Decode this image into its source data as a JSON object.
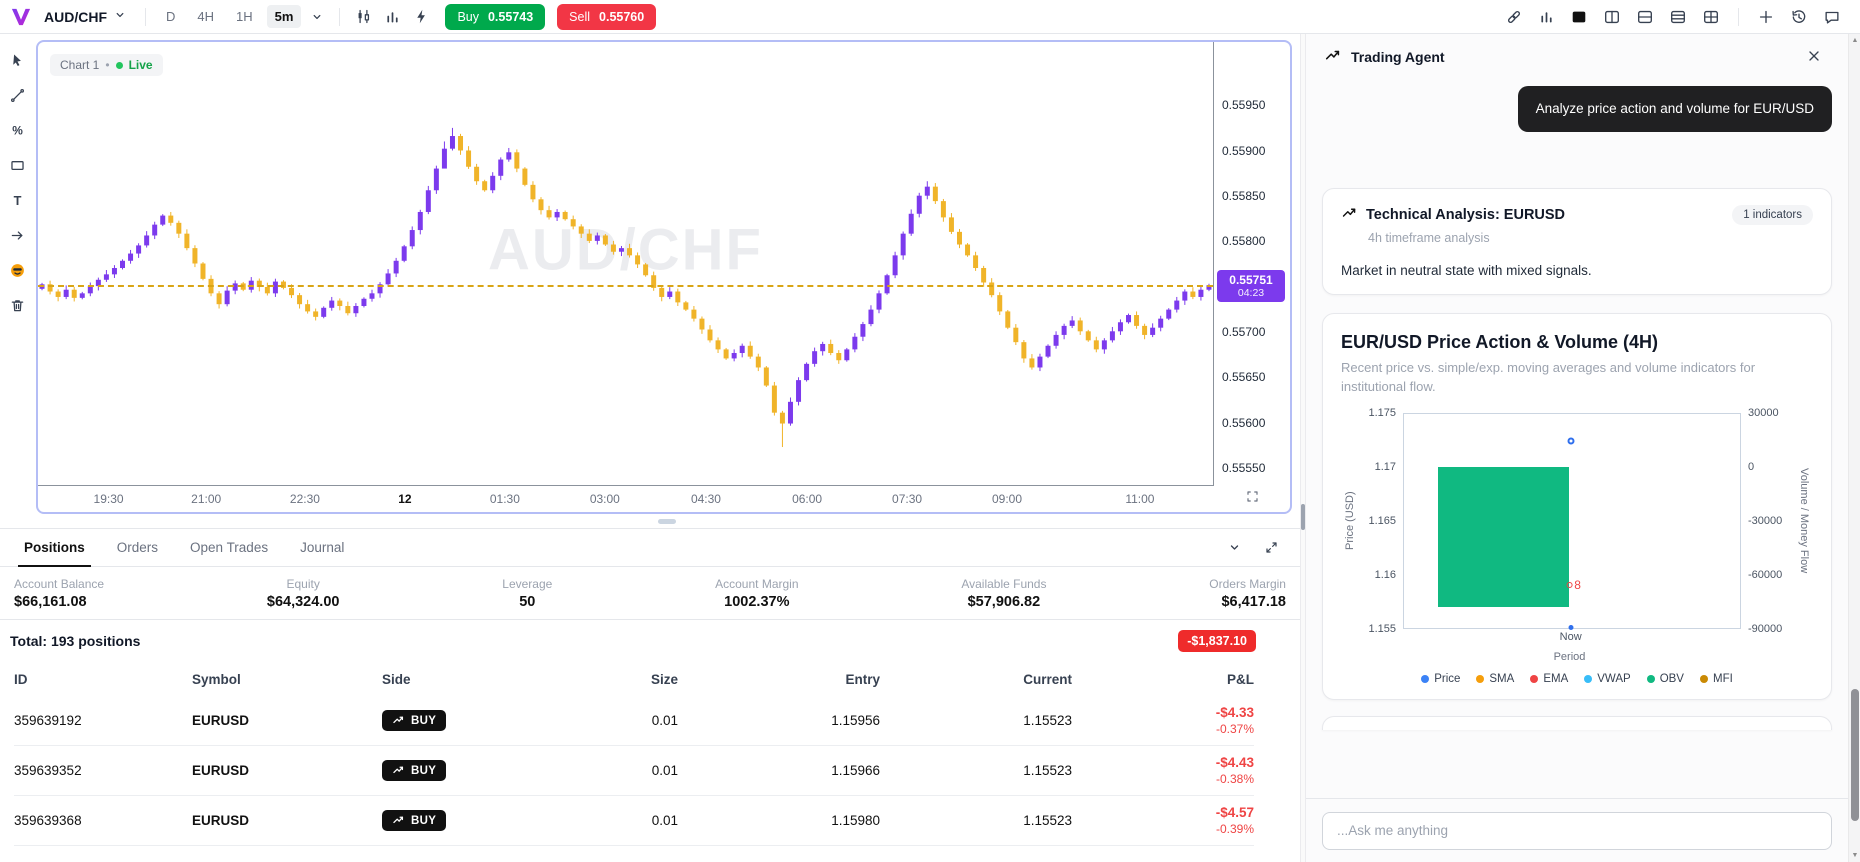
{
  "topbar": {
    "symbol": "AUD/CHF",
    "timeframes": [
      {
        "label": "D"
      },
      {
        "label": "4H"
      },
      {
        "label": "1H"
      },
      {
        "label": "5m",
        "active": true
      }
    ],
    "buy_label": "Buy",
    "buy_price": "0.55743",
    "sell_label": "Sell",
    "sell_price": "0.55760",
    "right_icons": [
      {
        "name": "link"
      },
      {
        "name": "stats"
      },
      {
        "name": "layout-single",
        "active": true
      },
      {
        "name": "layout-columns"
      },
      {
        "name": "layout-rows"
      },
      {
        "name": "layout-list"
      },
      {
        "name": "layout-grid"
      },
      {
        "sep": true
      },
      {
        "name": "plus"
      },
      {
        "name": "history"
      },
      {
        "name": "chat"
      }
    ]
  },
  "tools": [
    "cursor",
    "trendline",
    "percent",
    "rectangle",
    "text",
    "arrow",
    "emoji",
    "trash"
  ],
  "chart": {
    "badge_name": "Chart 1",
    "live_label": "Live",
    "watermark": "AUD/CHF",
    "current_price": 0.55751,
    "countdown": "04:23",
    "price_min": 0.5553,
    "price_max": 0.5602,
    "up_color": "#7c3aed",
    "down_color": "#f0b429",
    "grid_prices": [
      0.5595,
      0.559,
      0.5585,
      0.558,
      0.5575,
      0.557,
      0.5565,
      0.556,
      0.5555
    ],
    "time_labels": [
      {
        "label": "19:30",
        "pct": 6.0
      },
      {
        "label": "21:00",
        "pct": 14.3
      },
      {
        "label": "22:30",
        "pct": 22.7
      },
      {
        "label": "12",
        "pct": 31.2,
        "strong": true
      },
      {
        "label": "01:30",
        "pct": 39.7
      },
      {
        "label": "03:00",
        "pct": 48.2
      },
      {
        "label": "04:30",
        "pct": 56.8
      },
      {
        "label": "06:00",
        "pct": 65.4
      },
      {
        "label": "07:30",
        "pct": 73.9
      },
      {
        "label": "09:00",
        "pct": 82.4
      },
      {
        "label": "11:00",
        "pct": 93.7
      }
    ],
    "candles": [
      55752,
      55744,
      55738,
      55746,
      55737,
      55742,
      55750,
      55757,
      55763,
      55770,
      55778,
      55786,
      55795,
      55806,
      55818,
      55828,
      55820,
      55808,
      55792,
      55775,
      55758,
      55742,
      55730,
      55745,
      55753,
      55746,
      55756,
      55749,
      55742,
      55755,
      55748,
      55740,
      55730,
      55722,
      55716,
      55726,
      55734,
      55728,
      55720,
      55728,
      55736,
      55742,
      55752,
      55764,
      55778,
      55794,
      55812,
      55832,
      55856,
      55880,
      [
        55902,
        55888,
        55910
      ],
      [
        55916,
        55900,
        55925
      ],
      55900,
      55882,
      55866,
      55856,
      55872,
      55890,
      55898,
      55880,
      55862,
      55846,
      55834,
      55826,
      55832,
      55824,
      55816,
      55808,
      55800,
      55806,
      55796,
      55788,
      55792,
      55784,
      55774,
      55762,
      55748,
      55738,
      55744,
      55732,
      55724,
      55714,
      55702,
      55690,
      55680,
      55670,
      55676,
      55684,
      55672,
      55660,
      55640,
      55610,
      [
        55598,
        55572,
        55612
      ],
      55622,
      55646,
      55664,
      55678,
      55686,
      55676,
      55668,
      55680,
      55694,
      55708,
      55724,
      55742,
      55762,
      55784,
      55808,
      55830,
      55850,
      [
        55860,
        55846,
        55866
      ],
      55844,
      55826,
      55810,
      55796,
      55784,
      55770,
      55754,
      55740,
      55722,
      55704,
      55688,
      55670,
      55660,
      55672,
      55684,
      55696,
      55706,
      55712,
      55700,
      55690,
      55680,
      55690,
      55700,
      55710,
      55718,
      55706,
      55696,
      55704,
      55714,
      55724,
      55734,
      55744,
      55738,
      55746,
      55751
    ]
  },
  "positions_panel": {
    "tabs": [
      {
        "label": "Positions",
        "active": true
      },
      {
        "label": "Orders"
      },
      {
        "label": "Open Trades"
      },
      {
        "label": "Journal"
      }
    ],
    "stats": [
      {
        "label": "Account Balance",
        "value": "$66,161.08"
      },
      {
        "label": "Equity",
        "value": "$64,324.00"
      },
      {
        "label": "Leverage",
        "value": "50"
      },
      {
        "label": "Account Margin",
        "value": "1002.37%"
      },
      {
        "label": "Available Funds",
        "value": "$57,906.82"
      },
      {
        "label": "Orders Margin",
        "value": "$6,417.18"
      }
    ],
    "total_label": "Total: 193 positions",
    "total_pnl": "-$1,837.10",
    "columns": [
      "ID",
      "Symbol",
      "Side",
      "Size",
      "Entry",
      "Current",
      "P&L"
    ],
    "rows": [
      {
        "id": "359639192",
        "symbol": "EURUSD",
        "side": "BUY",
        "size": "0.01",
        "entry": "1.15956",
        "current": "1.15523",
        "pnl": "-$4.33",
        "pnl_pct": "-0.37%"
      },
      {
        "id": "359639352",
        "symbol": "EURUSD",
        "side": "BUY",
        "size": "0.01",
        "entry": "1.15966",
        "current": "1.15523",
        "pnl": "-$4.43",
        "pnl_pct": "-0.38%"
      },
      {
        "id": "359639368",
        "symbol": "EURUSD",
        "side": "BUY",
        "size": "0.01",
        "entry": "1.15980",
        "current": "1.15523",
        "pnl": "-$4.57",
        "pnl_pct": "-0.39%"
      }
    ]
  },
  "agent": {
    "title": "Trading Agent",
    "user_message": "Analyze price action and volume for EUR/USD",
    "analysis_card": {
      "title": "Technical Analysis: EURUSD",
      "badge": "1 indicators",
      "subtitle": "4h timeframe analysis",
      "body": "Market in neutral state with mixed signals."
    },
    "chart_card": {
      "title": "EUR/USD Price Action & Volume (4H)",
      "subtitle": "Recent price vs. simple/exp. moving averages and volume indicators for institutional flow.",
      "chart_data": {
        "type": "bar",
        "x": [
          "Now"
        ],
        "xlabel": "Period",
        "left_axis": {
          "label": "Price (USD)",
          "ticks": [
            "1.175",
            "1.17",
            "1.165",
            "1.16",
            "1.155"
          ]
        },
        "right_axis": {
          "label": "Volume / Money Flow",
          "ticks": [
            "30000",
            "0",
            "-30000",
            "-60000",
            "-90000"
          ]
        },
        "obv_value": -78000,
        "price_point": 1.1725,
        "red_value": 1.159,
        "red_label": "8",
        "now_x_pct": 49.6,
        "legend": [
          {
            "name": "Price",
            "color": "#3b82f6"
          },
          {
            "name": "SMA",
            "color": "#f59e0b"
          },
          {
            "name": "EMA",
            "color": "#ef4444"
          },
          {
            "name": "VWAP",
            "color": "#38bdf8"
          },
          {
            "name": "OBV",
            "color": "#10b981"
          },
          {
            "name": "MFI",
            "color": "#ca8a04"
          }
        ]
      }
    },
    "input_placeholder": "...Ask me anything"
  },
  "colors": {
    "buy_green": "#00a94c",
    "sell_red": "#f23645",
    "candle_up": "#7c3aed",
    "candle_down": "#f0b429",
    "price_badge": "#7c3aed",
    "loss_red": "#ef4444"
  }
}
